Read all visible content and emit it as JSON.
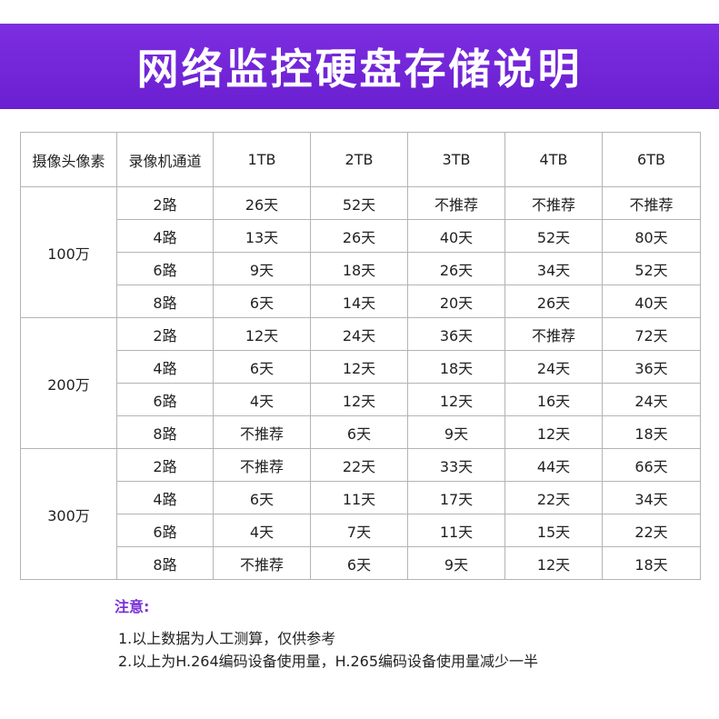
{
  "banner": {
    "title": "网络监控硬盘存储说明"
  },
  "table": {
    "headers": [
      "摄像头像素",
      "录像机通道",
      "1TB",
      "2TB",
      "3TB",
      "4TB",
      "6TB"
    ],
    "groups": [
      {
        "pixel": "100万",
        "rows": [
          {
            "channel": "2路",
            "values": [
              "26天",
              "52天",
              "不推荐",
              "不推荐",
              "不推荐"
            ]
          },
          {
            "channel": "4路",
            "values": [
              "13天",
              "26天",
              "40天",
              "52天",
              "80天"
            ]
          },
          {
            "channel": "6路",
            "values": [
              "9天",
              "18天",
              "26天",
              "34天",
              "52天"
            ]
          },
          {
            "channel": "8路",
            "values": [
              "6天",
              "14天",
              "20天",
              "26天",
              "40天"
            ]
          }
        ]
      },
      {
        "pixel": "200万",
        "rows": [
          {
            "channel": "2路",
            "values": [
              "12天",
              "24天",
              "36天",
              "不推荐",
              "72天"
            ]
          },
          {
            "channel": "4路",
            "values": [
              "6天",
              "12天",
              "18天",
              "24天",
              "36天"
            ]
          },
          {
            "channel": "6路",
            "values": [
              "4天",
              "12天",
              "12天",
              "16天",
              "24天"
            ]
          },
          {
            "channel": "8路",
            "values": [
              "不推荐",
              "6天",
              "9天",
              "12天",
              "18天"
            ]
          }
        ]
      },
      {
        "pixel": "300万",
        "rows": [
          {
            "channel": "2路",
            "values": [
              "不推荐",
              "22天",
              "33天",
              "44天",
              "66天"
            ]
          },
          {
            "channel": "4路",
            "values": [
              "6天",
              "11天",
              "17天",
              "22天",
              "34天"
            ]
          },
          {
            "channel": "6路",
            "values": [
              "4天",
              "7天",
              "11天",
              "15天",
              "22天"
            ]
          },
          {
            "channel": "8路",
            "values": [
              "不推荐",
              "6天",
              "9天",
              "12天",
              "18天"
            ]
          }
        ]
      }
    ]
  },
  "notes": {
    "heading": "注意:",
    "items": [
      "1.以上数据为人工测算，仅供参考",
      "2.以上为H.264编码设备使用量，H.265编码设备使用量减少一半"
    ]
  },
  "colors": {
    "banner": "#6a1fd0",
    "note_heading": "#7a32d8",
    "grid": "#b4b4b4"
  }
}
